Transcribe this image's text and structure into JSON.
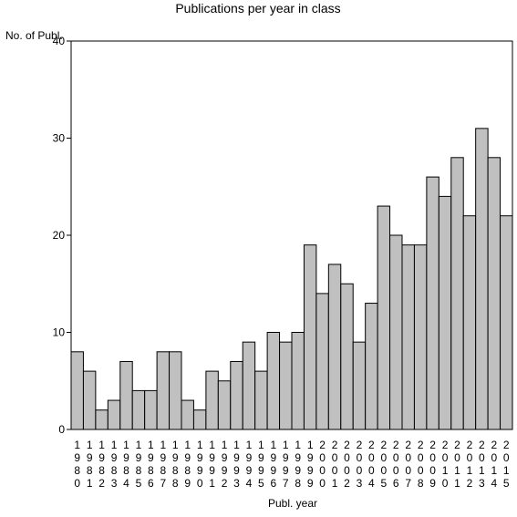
{
  "chart_data": {
    "type": "bar",
    "title": "Publications per year in class",
    "xlabel": "Publ. year",
    "ylabel": "No. of Publ.",
    "ylim": [
      0,
      40
    ],
    "yticks": [
      0,
      10,
      20,
      30,
      40
    ],
    "grid": false,
    "categories": [
      "1980",
      "1981",
      "1982",
      "1983",
      "1984",
      "1985",
      "1986",
      "1987",
      "1988",
      "1989",
      "1990",
      "1991",
      "1992",
      "1993",
      "1994",
      "1995",
      "1996",
      "1997",
      "1998",
      "1999",
      "2000",
      "2001",
      "2002",
      "2003",
      "2004",
      "2005",
      "2006",
      "2007",
      "2008",
      "2009",
      "2010",
      "2011",
      "2012",
      "2013",
      "2014",
      "2015"
    ],
    "values": [
      8,
      6,
      2,
      3,
      7,
      4,
      4,
      8,
      8,
      3,
      2,
      6,
      5,
      7,
      9,
      6,
      10,
      9,
      10,
      19,
      14,
      17,
      15,
      9,
      13,
      23,
      20,
      19,
      19,
      26,
      24,
      28,
      22,
      31,
      28,
      22
    ],
    "colors": {
      "bar_fill": "#c0c0c0",
      "bar_stroke": "#000000",
      "axis": "#000000",
      "background": "#ffffff"
    }
  }
}
